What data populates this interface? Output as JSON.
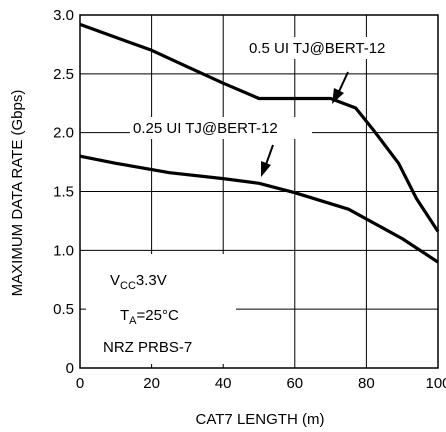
{
  "chart_data": {
    "type": "line",
    "title": "",
    "xlabel": "CAT7 LENGTH (m)",
    "ylabel": "MAXIMUM DATA RATE (Gbps)",
    "xlim": [
      0,
      100
    ],
    "ylim": [
      0,
      3.0
    ],
    "x_ticks": [
      "0",
      "20",
      "40",
      "60",
      "80",
      "100"
    ],
    "y_ticks": [
      "0",
      "0.5",
      "1.0",
      "1.5",
      "2.0",
      "2.5",
      "3.0"
    ],
    "grid": true,
    "series": [
      {
        "name": "0.5 UI TJ@BERT-12",
        "x": [
          0,
          10,
          20,
          30,
          40,
          50,
          60,
          70,
          77,
          82,
          89,
          94,
          100
        ],
        "y": [
          2.92,
          2.81,
          2.7,
          2.56,
          2.42,
          2.29,
          2.29,
          2.29,
          2.21,
          2.02,
          1.74,
          1.44,
          1.16
        ]
      },
      {
        "name": "0.25 UI TJ@BERT-12",
        "x": [
          0,
          10,
          25,
          40,
          50,
          60,
          75,
          90,
          100
        ],
        "y": [
          1.8,
          1.74,
          1.66,
          1.61,
          1.57,
          1.49,
          1.35,
          1.1,
          0.9
        ]
      }
    ],
    "conditions": {
      "vcc": "3.3V",
      "ta": "=25°C",
      "signal": "NRZ PRBS-7"
    }
  }
}
